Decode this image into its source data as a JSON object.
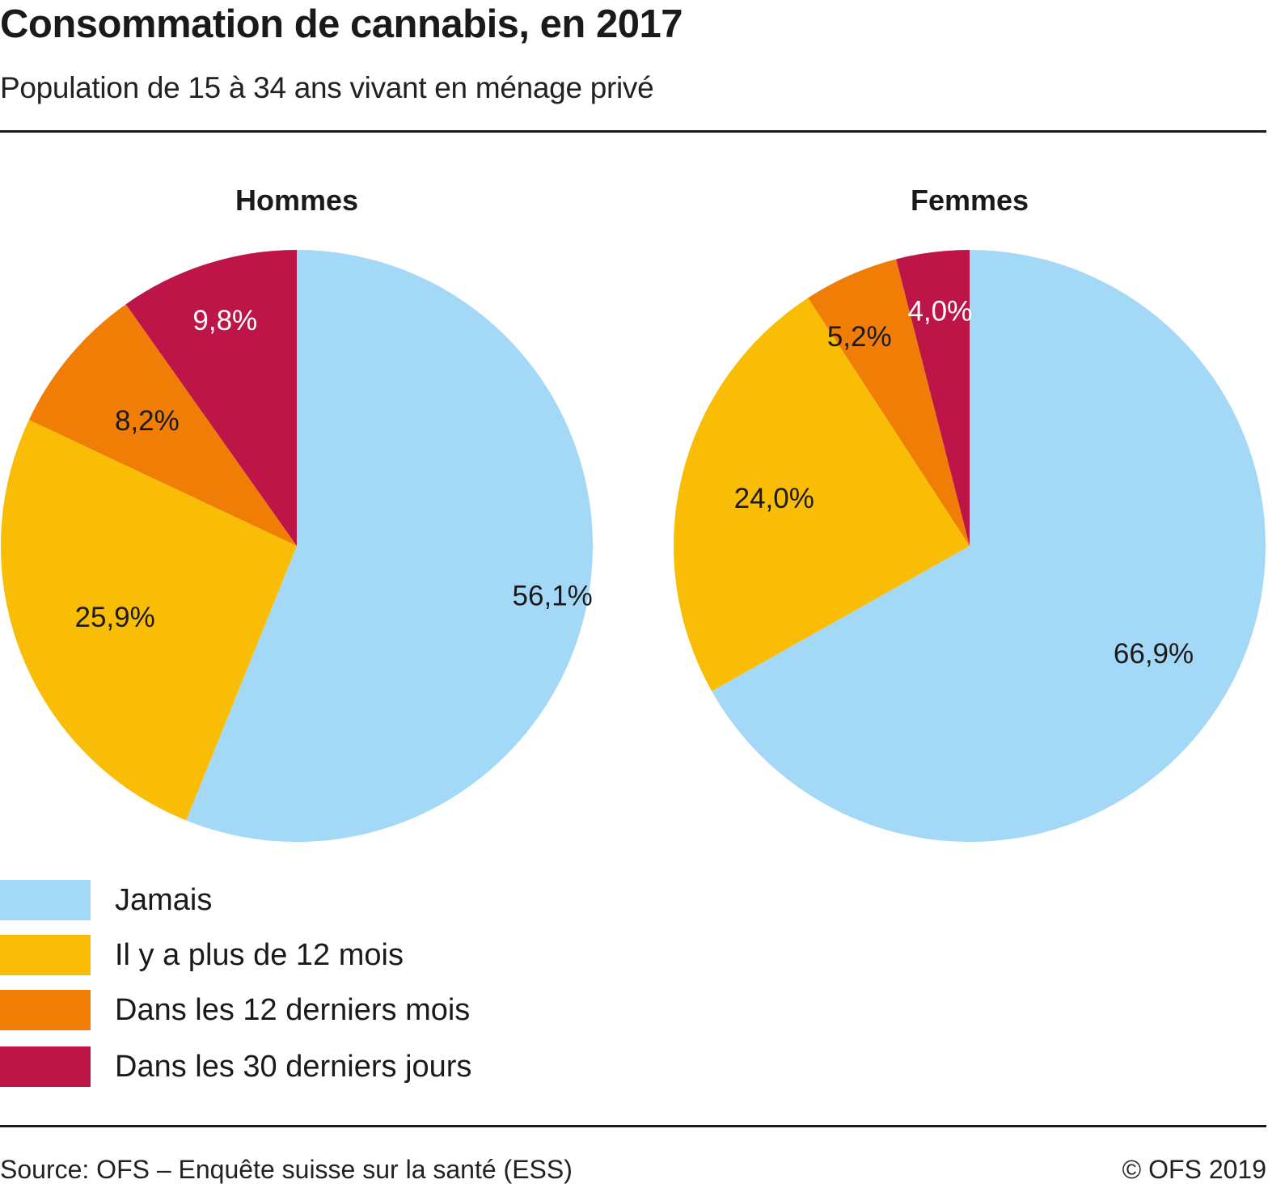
{
  "header": {
    "title": "Consommation de cannabis, en 2017",
    "subtitle": "Population de 15 à 34 ans vivant en ménage privé"
  },
  "footer": {
    "source": "Source: OFS – Enquête suisse sur la santé (ESS)",
    "copyright": "© OFS 2019"
  },
  "legend": [
    {
      "label": "Jamais",
      "color": "#a3d9f6"
    },
    {
      "label": "Il y a plus de 12 mois",
      "color": "#f9bd05"
    },
    {
      "label": "Dans les 12 derniers mois",
      "color": "#ef7d06"
    },
    {
      "label": "Dans les 30 derniers jours",
      "color": "#be1548"
    }
  ],
  "chart_data": [
    {
      "type": "pie",
      "title": "Hommes",
      "start": "12 o'clock",
      "direction": "clockwise",
      "categories": [
        "Jamais",
        "Il y a plus de 12 mois",
        "Dans les 12 derniers mois",
        "Dans les 30 derniers jours"
      ],
      "values": [
        56.1,
        25.9,
        8.2,
        9.8
      ],
      "labels": [
        "56,1%",
        "25,9%",
        "8,2%",
        "9,8%"
      ],
      "label_colors": [
        "#1a1a1a",
        "#1a1a1a",
        "#1a1a1a",
        "#ffffff"
      ],
      "colors": [
        "#a3d9f6",
        "#f9bd05",
        "#ef7d06",
        "#be1548"
      ]
    },
    {
      "type": "pie",
      "title": "Femmes",
      "start": "12 o'clock",
      "direction": "clockwise",
      "categories": [
        "Jamais",
        "Il y a plus de 12 mois",
        "Dans les 12 derniers mois",
        "Dans les 30 derniers jours"
      ],
      "values": [
        66.9,
        24.0,
        5.2,
        4.0
      ],
      "labels": [
        "66,9%",
        "24,0%",
        "5,2%",
        "4,0%"
      ],
      "label_colors": [
        "#1a1a1a",
        "#1a1a1a",
        "#1a1a1a",
        "#ffffff"
      ],
      "colors": [
        "#a3d9f6",
        "#f9bd05",
        "#ef7d06",
        "#be1548"
      ]
    }
  ]
}
